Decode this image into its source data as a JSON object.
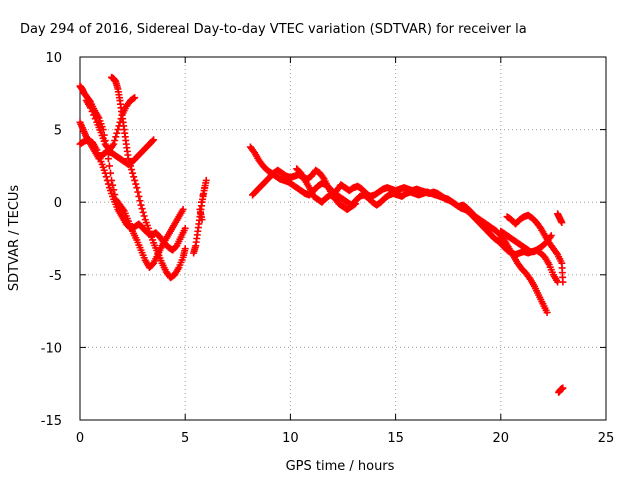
{
  "chart_data": {
    "type": "scatter",
    "title": "Day 294 of 2016, Sidereal Day-to-day VTEC variation (SDTVAR) for receiver la",
    "xlabel": "GPS time / hours",
    "ylabel": "SDTVAR / TECUs",
    "xlim": [
      0,
      25
    ],
    "ylim": [
      -15,
      10
    ],
    "xticks": [
      0,
      5,
      10,
      15,
      20,
      25
    ],
    "yticks": [
      -15,
      -10,
      -5,
      0,
      5,
      10
    ],
    "xtick_labels": [
      "0",
      "5",
      "10",
      "15",
      "20",
      "25"
    ],
    "ytick_labels": [
      "-15",
      "-10",
      "-5",
      "0",
      "5",
      "10"
    ],
    "grid": true,
    "marker": "+",
    "color": "#ff0000",
    "series": [
      {
        "points": [
          [
            0.0,
            8.0
          ],
          [
            0.1,
            7.8
          ],
          [
            0.2,
            7.5
          ],
          [
            0.35,
            7.2
          ],
          [
            0.5,
            6.9
          ],
          [
            0.7,
            6.3
          ],
          [
            0.9,
            5.8
          ],
          [
            1.1,
            5.0
          ],
          [
            1.3,
            3.5
          ],
          [
            1.5,
            1.5
          ],
          [
            1.7,
            0.2
          ],
          [
            1.9,
            -0.2
          ],
          [
            2.1,
            -0.6
          ],
          [
            2.3,
            -1.3
          ],
          [
            2.5,
            -2.0
          ],
          [
            2.7,
            -2.6
          ],
          [
            2.9,
            -3.3
          ],
          [
            3.1,
            -4.0
          ],
          [
            3.3,
            -4.5
          ],
          [
            3.5,
            -4.2
          ],
          [
            3.7,
            -3.6
          ],
          [
            3.9,
            -3.0
          ],
          [
            4.1,
            -2.5
          ],
          [
            4.3,
            -2.0
          ],
          [
            4.5,
            -1.5
          ],
          [
            4.7,
            -1.0
          ],
          [
            4.9,
            -0.5
          ]
        ]
      },
      {
        "points": [
          [
            0.0,
            5.5
          ],
          [
            0.15,
            5.0
          ],
          [
            0.3,
            4.5
          ],
          [
            0.5,
            4.0
          ],
          [
            0.7,
            3.5
          ],
          [
            0.9,
            3.0
          ],
          [
            1.1,
            3.3
          ],
          [
            1.3,
            3.5
          ],
          [
            1.5,
            3.4
          ],
          [
            1.7,
            3.2
          ],
          [
            1.9,
            3.0
          ],
          [
            2.1,
            2.8
          ],
          [
            2.3,
            2.6
          ],
          [
            2.5,
            2.8
          ],
          [
            2.7,
            3.1
          ],
          [
            2.9,
            3.4
          ],
          [
            3.1,
            3.7
          ],
          [
            3.3,
            4.0
          ],
          [
            3.5,
            4.3
          ]
        ]
      },
      {
        "points": [
          [
            0.0,
            4.0
          ],
          [
            0.2,
            4.2
          ],
          [
            0.4,
            4.3
          ],
          [
            0.6,
            4.1
          ],
          [
            0.8,
            3.6
          ],
          [
            1.0,
            2.8
          ],
          [
            1.2,
            2.0
          ],
          [
            1.4,
            1.0
          ],
          [
            1.6,
            0.2
          ],
          [
            1.8,
            -0.5
          ],
          [
            2.0,
            -1.0
          ],
          [
            2.2,
            -1.5
          ],
          [
            2.4,
            -1.8
          ],
          [
            2.6,
            -1.7
          ],
          [
            2.8,
            -1.5
          ],
          [
            3.0,
            -1.8
          ],
          [
            3.2,
            -2.1
          ],
          [
            3.4,
            -2.3
          ],
          [
            3.6,
            -2.1
          ],
          [
            3.8,
            -2.4
          ],
          [
            4.0,
            -2.8
          ],
          [
            4.2,
            -3.1
          ],
          [
            4.4,
            -3.3
          ],
          [
            4.6,
            -3.0
          ],
          [
            4.8,
            -2.4
          ],
          [
            5.0,
            -1.8
          ]
        ]
      },
      {
        "points": [
          [
            0.3,
            7.0
          ],
          [
            0.5,
            6.5
          ],
          [
            0.8,
            5.5
          ],
          [
            1.0,
            4.8
          ],
          [
            1.2,
            4.0
          ],
          [
            1.4,
            3.6
          ],
          [
            1.6,
            4.0
          ],
          [
            1.8,
            5.0
          ],
          [
            2.0,
            6.0
          ],
          [
            2.2,
            6.6
          ],
          [
            2.4,
            7.0
          ],
          [
            2.6,
            7.2
          ]
        ]
      },
      {
        "points": [
          [
            1.5,
            8.6
          ],
          [
            1.6,
            8.5
          ],
          [
            1.7,
            8.3
          ],
          [
            1.8,
            7.8
          ],
          [
            1.9,
            7.0
          ],
          [
            2.0,
            6.0
          ],
          [
            2.1,
            5.0
          ],
          [
            2.2,
            4.0
          ],
          [
            2.3,
            3.0
          ],
          [
            2.5,
            2.0
          ],
          [
            2.7,
            1.0
          ],
          [
            2.9,
            -0.2
          ],
          [
            3.1,
            -1.2
          ],
          [
            3.3,
            -2.0
          ],
          [
            3.5,
            -2.8
          ],
          [
            3.7,
            -3.5
          ],
          [
            3.9,
            -4.2
          ],
          [
            4.1,
            -4.8
          ],
          [
            4.3,
            -5.2
          ],
          [
            4.5,
            -5.0
          ],
          [
            4.7,
            -4.5
          ],
          [
            4.9,
            -3.8
          ],
          [
            5.0,
            -3.2
          ]
        ]
      },
      {
        "points": [
          [
            5.4,
            -3.5
          ],
          [
            5.5,
            -3.0
          ],
          [
            5.6,
            -2.0
          ],
          [
            5.7,
            -1.0
          ],
          [
            5.8,
            0.0
          ],
          [
            5.9,
            0.8
          ],
          [
            6.0,
            1.5
          ],
          [
            5.7,
            -0.5
          ],
          [
            5.8,
            -1.2
          ]
        ]
      },
      {
        "points": [
          [
            8.1,
            3.8
          ],
          [
            8.3,
            3.4
          ],
          [
            8.5,
            2.9
          ],
          [
            8.7,
            2.5
          ],
          [
            8.9,
            2.2
          ],
          [
            9.1,
            2.0
          ],
          [
            9.3,
            1.8
          ],
          [
            9.5,
            1.6
          ],
          [
            9.7,
            1.5
          ],
          [
            9.9,
            1.4
          ],
          [
            10.1,
            1.2
          ],
          [
            10.3,
            1.0
          ],
          [
            10.5,
            0.8
          ],
          [
            10.7,
            0.6
          ],
          [
            10.9,
            0.5
          ],
          [
            11.1,
            0.8
          ],
          [
            11.3,
            1.1
          ],
          [
            11.5,
            1.3
          ],
          [
            11.7,
            1.2
          ],
          [
            11.9,
            0.9
          ],
          [
            12.1,
            0.6
          ],
          [
            12.3,
            0.4
          ],
          [
            12.5,
            0.2
          ],
          [
            12.7,
            0.0
          ],
          [
            12.9,
            -0.2
          ],
          [
            13.1,
            0.1
          ],
          [
            13.3,
            0.4
          ],
          [
            13.5,
            0.5
          ],
          [
            13.7,
            0.3
          ],
          [
            13.9,
            0.0
          ],
          [
            14.1,
            -0.2
          ],
          [
            14.3,
            0.0
          ],
          [
            14.5,
            0.3
          ],
          [
            14.7,
            0.5
          ],
          [
            14.9,
            0.6
          ],
          [
            15.1,
            0.5
          ],
          [
            15.3,
            0.4
          ],
          [
            15.5,
            0.6
          ],
          [
            15.7,
            0.7
          ],
          [
            15.9,
            0.6
          ],
          [
            16.1,
            0.5
          ],
          [
            16.3,
            0.6
          ],
          [
            16.5,
            0.7
          ],
          [
            16.7,
            0.6
          ],
          [
            16.9,
            0.5
          ],
          [
            17.1,
            0.4
          ],
          [
            17.3,
            0.3
          ],
          [
            17.5,
            0.2
          ],
          [
            17.7,
            0.0
          ],
          [
            17.9,
            -0.2
          ],
          [
            18.1,
            -0.4
          ],
          [
            18.3,
            -0.5
          ],
          [
            18.5,
            -0.7
          ],
          [
            18.7,
            -1.0
          ],
          [
            18.9,
            -1.3
          ],
          [
            19.1,
            -1.6
          ],
          [
            19.3,
            -1.9
          ],
          [
            19.5,
            -2.2
          ],
          [
            19.7,
            -2.5
          ],
          [
            19.9,
            -2.7
          ],
          [
            20.1,
            -3.0
          ],
          [
            20.3,
            -3.3
          ],
          [
            20.5,
            -3.5
          ],
          [
            20.7,
            -3.6
          ],
          [
            20.9,
            -3.5
          ],
          [
            21.1,
            -3.4
          ],
          [
            21.3,
            -3.5
          ],
          [
            21.5,
            -3.4
          ],
          [
            21.7,
            -3.3
          ],
          [
            21.9,
            -3.5
          ],
          [
            22.1,
            -3.8
          ],
          [
            22.3,
            -4.3
          ],
          [
            22.5,
            -5.0
          ],
          [
            22.7,
            -5.5
          ]
        ]
      },
      {
        "points": [
          [
            8.2,
            0.5
          ],
          [
            8.4,
            0.8
          ],
          [
            8.6,
            1.1
          ],
          [
            8.8,
            1.4
          ],
          [
            9.0,
            1.7
          ],
          [
            9.2,
            2.0
          ],
          [
            9.4,
            2.2
          ],
          [
            9.6,
            2.0
          ],
          [
            9.8,
            1.8
          ],
          [
            10.0,
            1.7
          ],
          [
            10.2,
            1.8
          ],
          [
            10.4,
            1.9
          ],
          [
            10.6,
            1.7
          ],
          [
            10.8,
            1.6
          ],
          [
            11.0,
            1.8
          ],
          [
            11.2,
            2.2
          ],
          [
            11.4,
            2.0
          ],
          [
            11.6,
            1.6
          ],
          [
            11.8,
            1.0
          ],
          [
            12.0,
            0.5
          ],
          [
            12.2,
            0.8
          ],
          [
            12.4,
            1.2
          ],
          [
            12.6,
            1.0
          ],
          [
            12.8,
            0.8
          ],
          [
            13.0,
            1.0
          ],
          [
            13.2,
            1.1
          ],
          [
            13.4,
            0.9
          ],
          [
            13.6,
            0.6
          ],
          [
            13.8,
            0.4
          ],
          [
            14.0,
            0.5
          ],
          [
            14.2,
            0.7
          ],
          [
            14.4,
            0.9
          ],
          [
            14.6,
            1.0
          ],
          [
            14.8,
            0.9
          ],
          [
            15.0,
            0.8
          ],
          [
            15.2,
            0.9
          ],
          [
            15.4,
            1.0
          ],
          [
            15.6,
            0.9
          ],
          [
            15.8,
            0.8
          ],
          [
            16.0,
            0.9
          ],
          [
            16.2,
            0.8
          ],
          [
            16.4,
            0.7
          ],
          [
            16.6,
            0.6
          ],
          [
            16.8,
            0.7
          ],
          [
            17.0,
            0.6
          ],
          [
            17.2,
            0.4
          ],
          [
            17.4,
            0.2
          ],
          [
            17.6,
            0.1
          ],
          [
            17.8,
            -0.1
          ],
          [
            18.0,
            -0.3
          ],
          [
            18.2,
            -0.2
          ],
          [
            18.4,
            -0.4
          ],
          [
            18.6,
            -0.7
          ],
          [
            18.8,
            -1.0
          ],
          [
            19.0,
            -1.2
          ],
          [
            19.2,
            -1.4
          ],
          [
            19.4,
            -1.6
          ],
          [
            19.6,
            -1.8
          ],
          [
            19.8,
            -2.0
          ],
          [
            20.0,
            -2.3
          ],
          [
            20.2,
            -2.7
          ],
          [
            20.4,
            -3.2
          ],
          [
            20.6,
            -3.7
          ],
          [
            20.8,
            -4.2
          ],
          [
            21.0,
            -4.6
          ],
          [
            21.2,
            -4.9
          ],
          [
            21.4,
            -5.3
          ],
          [
            21.6,
            -5.8
          ],
          [
            21.8,
            -6.4
          ],
          [
            22.0,
            -7.0
          ],
          [
            22.2,
            -7.6
          ]
        ]
      },
      {
        "points": [
          [
            10.3,
            2.3
          ],
          [
            10.5,
            2.0
          ],
          [
            10.7,
            1.5
          ],
          [
            10.9,
            1.0
          ],
          [
            11.1,
            0.4
          ],
          [
            11.3,
            0.2
          ],
          [
            11.5,
            0.0
          ],
          [
            11.7,
            0.3
          ],
          [
            11.9,
            0.5
          ],
          [
            12.1,
            0.3
          ],
          [
            12.3,
            -0.1
          ],
          [
            12.5,
            -0.3
          ],
          [
            12.7,
            -0.5
          ],
          [
            12.9,
            -0.3
          ],
          [
            13.1,
            -0.1
          ]
        ]
      },
      {
        "points": [
          [
            20.3,
            -1.0
          ],
          [
            20.5,
            -1.2
          ],
          [
            20.7,
            -1.5
          ],
          [
            20.9,
            -1.2
          ],
          [
            21.1,
            -1.0
          ],
          [
            21.3,
            -0.9
          ],
          [
            21.5,
            -1.1
          ],
          [
            21.7,
            -1.4
          ],
          [
            21.9,
            -1.8
          ],
          [
            22.1,
            -2.3
          ],
          [
            22.3,
            -2.8
          ],
          [
            22.5,
            -3.2
          ],
          [
            22.7,
            -3.6
          ],
          [
            22.9,
            -4.2
          ],
          [
            22.95,
            -5.5
          ]
        ]
      },
      {
        "points": [
          [
            20.0,
            -2.0
          ],
          [
            20.2,
            -2.2
          ],
          [
            20.4,
            -2.4
          ],
          [
            20.6,
            -2.6
          ],
          [
            20.8,
            -2.8
          ],
          [
            21.0,
            -3.0
          ],
          [
            21.2,
            -3.2
          ],
          [
            21.4,
            -3.4
          ],
          [
            21.6,
            -3.4
          ],
          [
            21.8,
            -3.2
          ],
          [
            22.0,
            -3.0
          ],
          [
            22.2,
            -2.7
          ],
          [
            22.4,
            -2.3
          ]
        ]
      },
      {
        "points": [
          [
            22.7,
            -0.8
          ],
          [
            22.8,
            -1.1
          ],
          [
            22.9,
            -1.4
          ],
          [
            22.75,
            -13.1
          ],
          [
            22.85,
            -12.9
          ],
          [
            22.95,
            -12.8
          ]
        ]
      }
    ]
  }
}
